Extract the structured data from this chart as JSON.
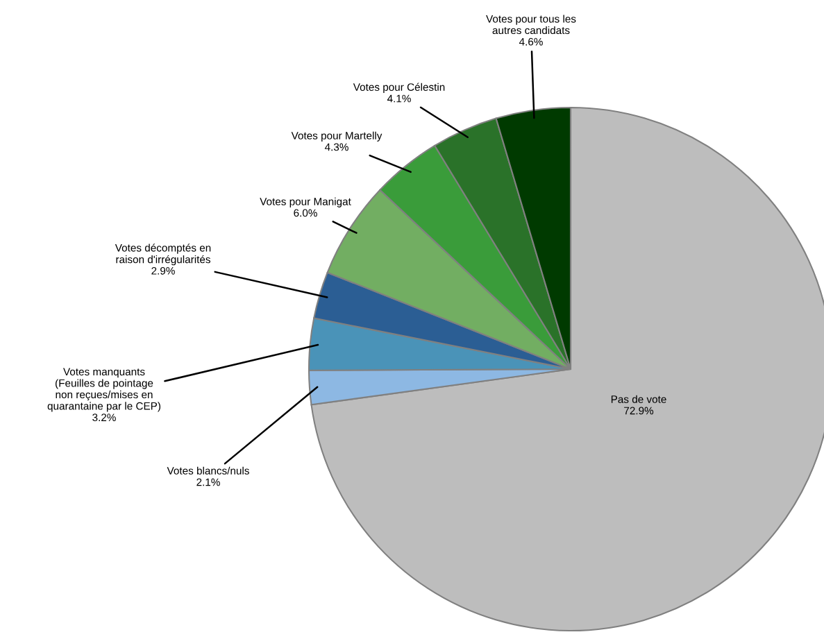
{
  "chart_data": {
    "type": "pie",
    "categories": [
      "Pas de vote",
      "Votes blancs/nuls",
      "Votes manquants\n(Feuilles de pointage\nnon reçues/mises en\nquarantaine par le CEP)",
      "Votes décomptés en\nraison d'irrégularités",
      "Votes pour Manigat",
      "Votes pour Martelly",
      "Votes pour Célestin",
      "Votes pour tous les\nautres candidats"
    ],
    "values": [
      72.9,
      2.1,
      3.2,
      2.9,
      6.0,
      4.3,
      4.1,
      4.6
    ],
    "value_labels": [
      "72.9%",
      "2.1%",
      "3.2%",
      "2.9%",
      "6.0%",
      "4.3%",
      "4.1%",
      "4.6%"
    ],
    "colors": [
      "#bdbdbd",
      "#8db8e3",
      "#4a93b8",
      "#2b5e94",
      "#72ae62",
      "#3a9c3a",
      "#2a7229",
      "#003a00"
    ]
  }
}
